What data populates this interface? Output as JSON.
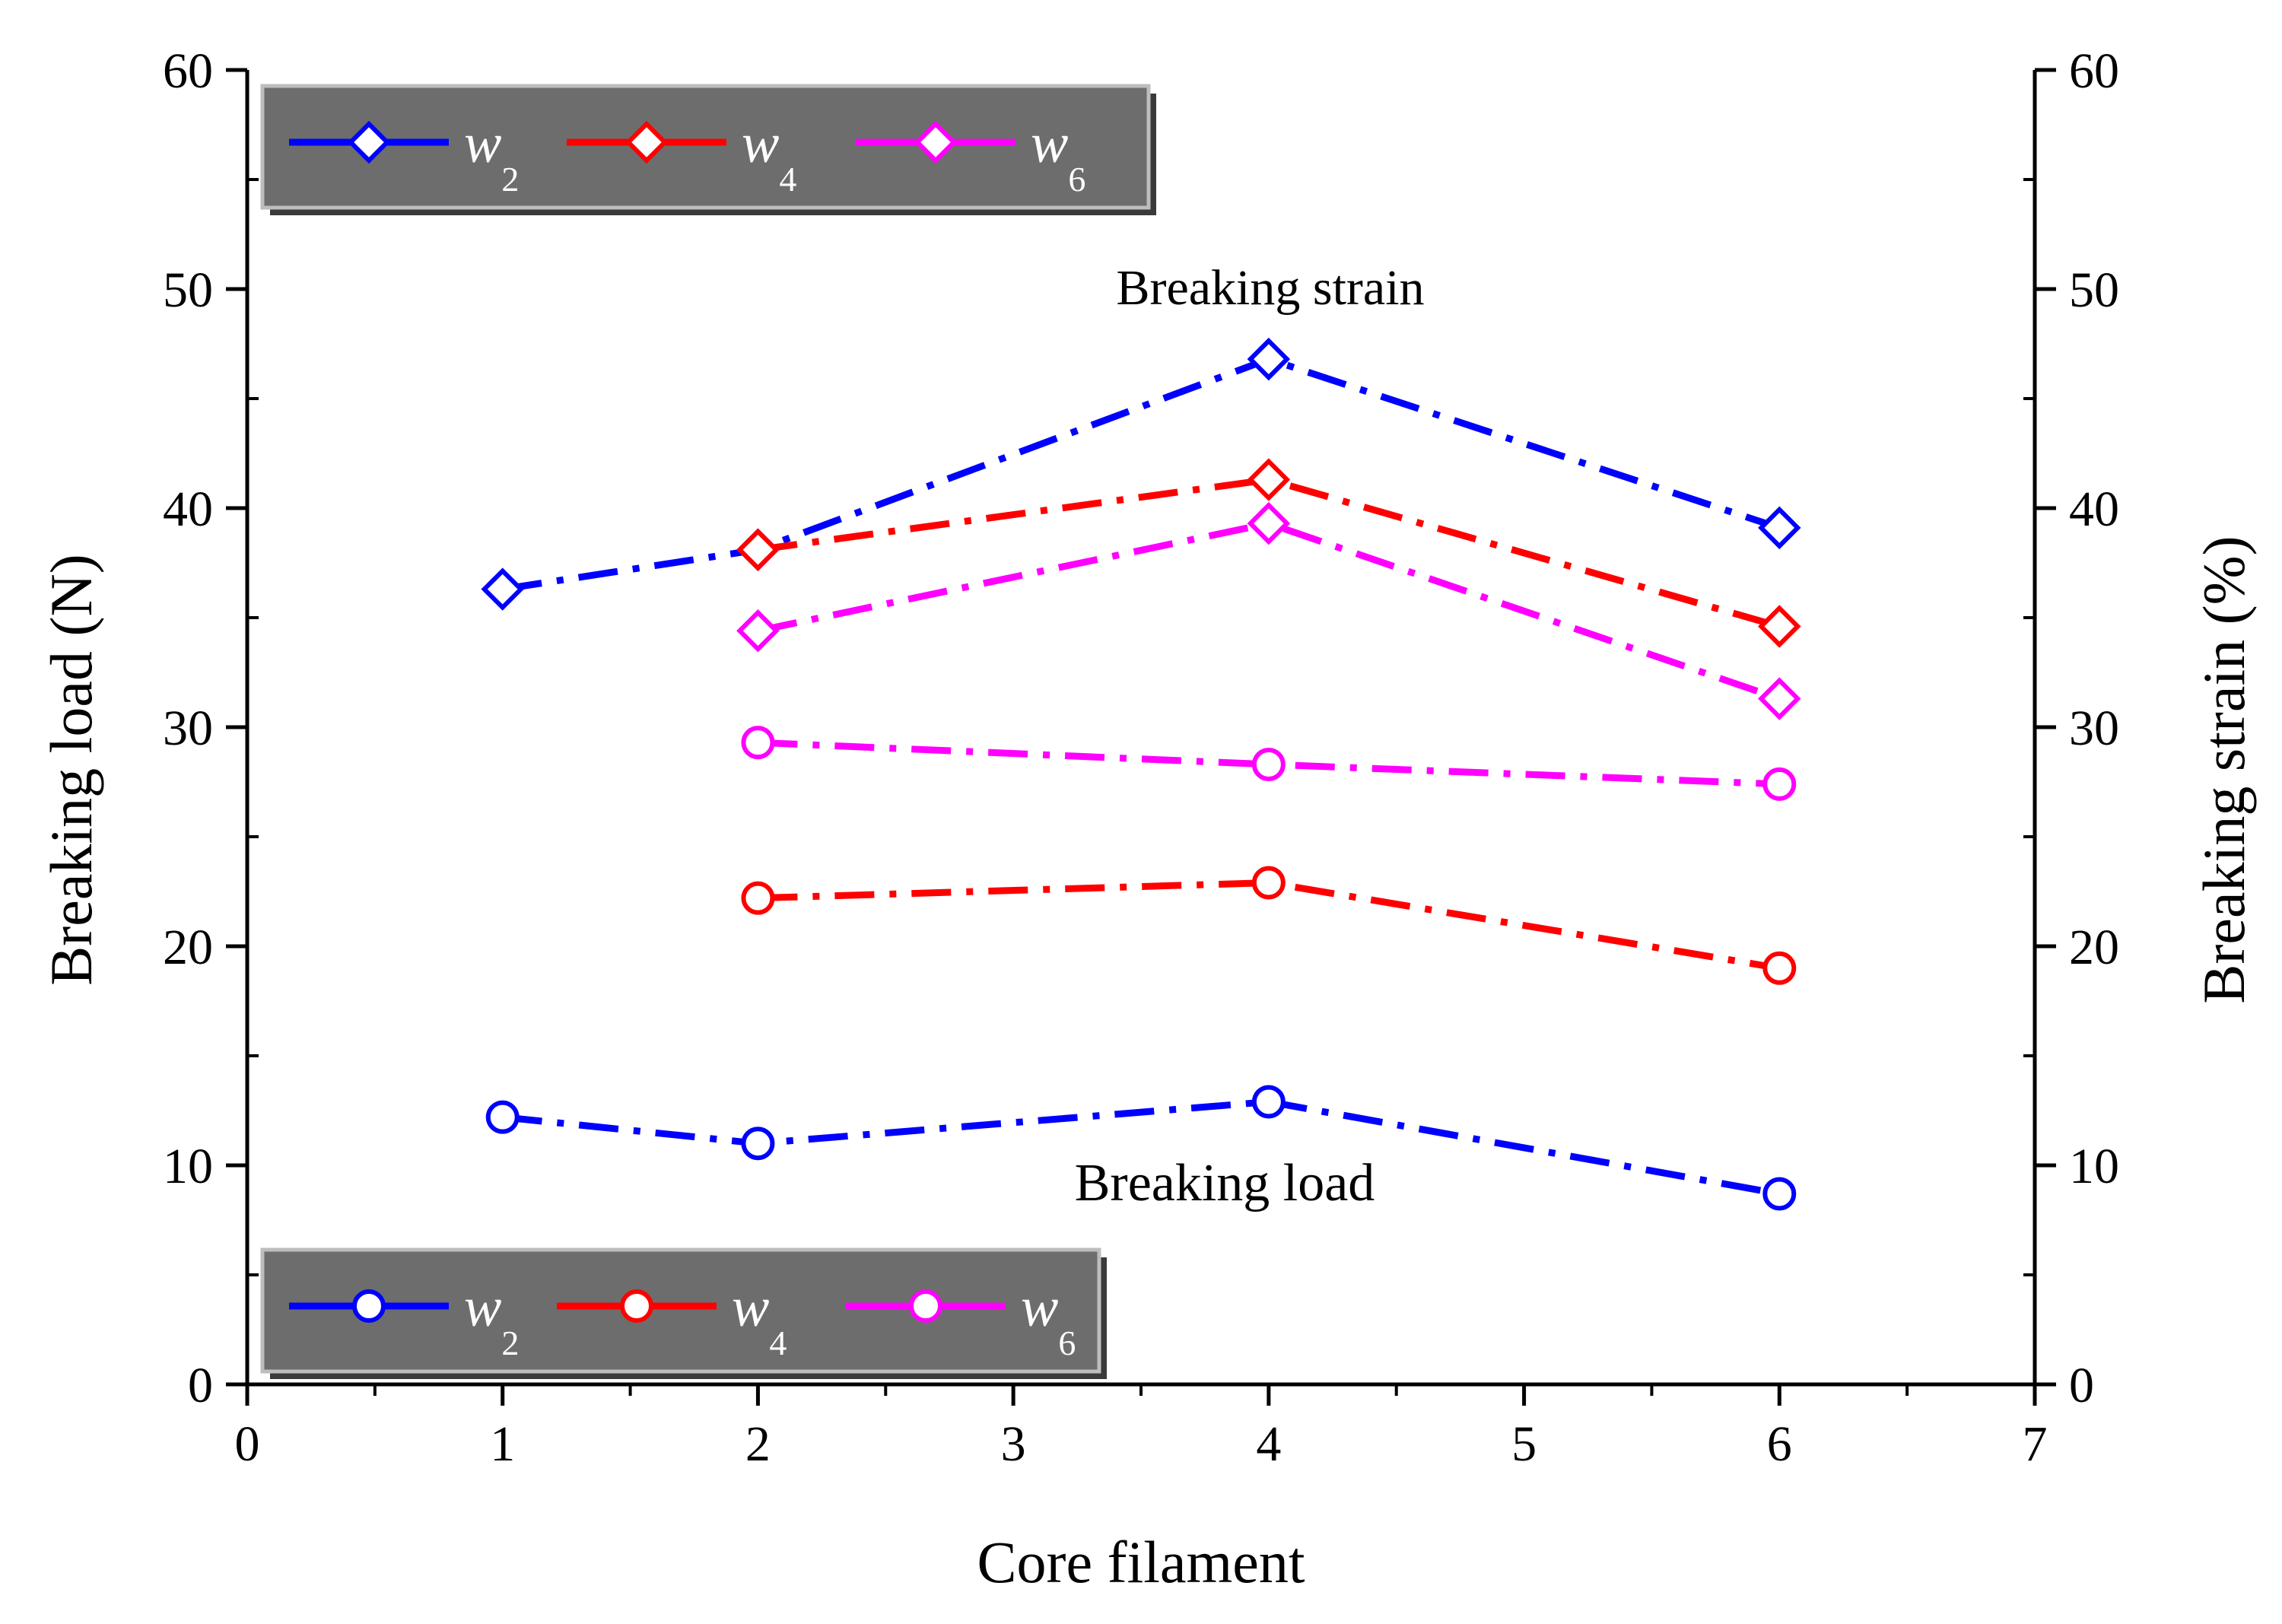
{
  "chart_data": {
    "type": "line",
    "x_axis": {
      "label": "Core filament",
      "min": 0,
      "max": 7,
      "ticks": [
        0,
        1,
        2,
        3,
        4,
        5,
        6,
        7
      ]
    },
    "y_axis_left": {
      "label": "Breaking load (N)",
      "min": 0,
      "max": 60,
      "ticks": [
        0,
        10,
        20,
        30,
        40,
        50,
        60
      ]
    },
    "y_axis_right": {
      "label": "Breaking strain (%)",
      "min": 0,
      "max": 60,
      "ticks": [
        0,
        10,
        20,
        30,
        40,
        50,
        60
      ]
    },
    "annotations": {
      "strain": "Breaking strain",
      "load": "Breaking load"
    },
    "legends": {
      "strain": {
        "marker": "diamond",
        "entries": [
          {
            "base": "w",
            "sub": "2",
            "color": "#0000ff"
          },
          {
            "base": "w",
            "sub": "4",
            "color": "#ff0000"
          },
          {
            "base": "w",
            "sub": "6",
            "color": "#ff00ff"
          }
        ]
      },
      "load": {
        "marker": "circle",
        "entries": [
          {
            "base": "w",
            "sub": "2",
            "color": "#0000ff"
          },
          {
            "base": "w",
            "sub": "4",
            "color": "#ff0000"
          },
          {
            "base": "w",
            "sub": "6",
            "color": "#ff00ff"
          }
        ]
      }
    },
    "series": [
      {
        "name": "w2 breaking strain",
        "group": "strain",
        "axis": "right",
        "marker": "diamond",
        "color": "#0000ff",
        "x": [
          1,
          2,
          4,
          6
        ],
        "y": [
          36.3,
          38.1,
          46.8,
          39.1
        ]
      },
      {
        "name": "w4 breaking strain",
        "group": "strain",
        "axis": "right",
        "marker": "diamond",
        "color": "#ff0000",
        "x": [
          2,
          4,
          6
        ],
        "y": [
          38.1,
          41.3,
          34.6
        ]
      },
      {
        "name": "w6 breaking strain",
        "group": "strain",
        "axis": "right",
        "marker": "diamond",
        "color": "#ff00ff",
        "x": [
          2,
          4,
          6
        ],
        "y": [
          34.4,
          39.3,
          31.3
        ]
      },
      {
        "name": "w2 breaking load",
        "group": "load",
        "axis": "left",
        "marker": "circle",
        "color": "#0000ff",
        "x": [
          1,
          2,
          4,
          6
        ],
        "y": [
          12.2,
          11.0,
          12.9,
          8.7
        ]
      },
      {
        "name": "w4 breaking load",
        "group": "load",
        "axis": "left",
        "marker": "circle",
        "color": "#ff0000",
        "x": [
          2,
          4,
          6
        ],
        "y": [
          22.2,
          22.9,
          19.0
        ]
      },
      {
        "name": "w6 breaking load",
        "group": "load",
        "axis": "left",
        "marker": "circle",
        "color": "#ff00ff",
        "x": [
          2,
          4,
          6
        ],
        "y": [
          29.3,
          28.3,
          27.4
        ]
      }
    ]
  }
}
